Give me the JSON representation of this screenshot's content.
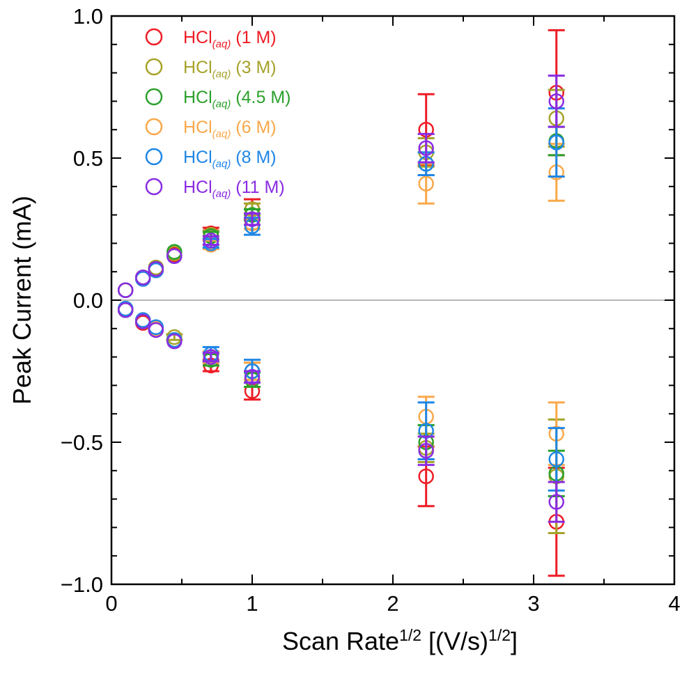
{
  "chart_data": {
    "type": "scatter",
    "title": "",
    "xlabel": "Scan Rate",
    "xlabel_sup": "1/2",
    "xlabel_tail": " [(V/s)",
    "xlabel_tail_sup": "1/2",
    "xlabel_end": "]",
    "ylabel": "Peak Current (mA)",
    "xlim": [
      0,
      4
    ],
    "ylim": [
      -1.0,
      1.0
    ],
    "xticks": [
      0,
      1,
      2,
      3,
      4
    ],
    "xtick_labels": [
      "0",
      "1",
      "2",
      "3",
      "4"
    ],
    "yticks": [
      -1.0,
      -0.5,
      0.0,
      0.5,
      1.0
    ],
    "ytick_labels": [
      "−1.0",
      "−0.5",
      "0.0",
      "0.5",
      "1.0"
    ],
    "grid": false,
    "legend_position": "top-left",
    "zero_line_color": "#a0a0a0",
    "x": [
      0.1,
      0.224,
      0.316,
      0.447,
      0.707,
      1.0,
      2.236,
      3.162
    ],
    "series": [
      {
        "name": "HCl",
        "sub": "(aq)",
        "suffix": " (1 M)",
        "color": "#ee1c25",
        "anodic": [
          0.035,
          0.075,
          0.11,
          0.16,
          0.235,
          0.32,
          0.6,
          0.73
        ],
        "anodic_err": [
          0,
          0,
          0,
          0,
          0.02,
          0.035,
          0.125,
          0.22
        ],
        "cathodic": [
          -0.035,
          -0.08,
          -0.105,
          -0.14,
          -0.23,
          -0.32,
          -0.62,
          -0.78
        ],
        "cathodic_err": [
          0,
          0,
          0,
          0,
          0.02,
          0.03,
          0.105,
          0.19
        ]
      },
      {
        "name": "HCl",
        "sub": "(aq)",
        "suffix": " (3 M)",
        "color": "#a6a22a",
        "anodic": [
          0.035,
          0.08,
          0.115,
          0.165,
          0.23,
          0.32,
          0.52,
          0.64
        ],
        "anodic_err": [
          0,
          0,
          0,
          0,
          0.015,
          0.02,
          0.05,
          0.1
        ],
        "cathodic": [
          -0.03,
          -0.075,
          -0.1,
          -0.13,
          -0.2,
          -0.25,
          -0.52,
          -0.62
        ],
        "cathodic_err": [
          0,
          0,
          0,
          0.01,
          0.02,
          0.03,
          0.05,
          0.2
        ]
      },
      {
        "name": "HCl",
        "sub": "(aq)",
        "suffix": " (4.5 M)",
        "color": "#2ca02c",
        "anodic": [
          0.035,
          0.08,
          0.11,
          0.17,
          0.225,
          0.3,
          0.48,
          0.56
        ],
        "anodic_err": [
          0,
          0,
          0,
          0,
          0.015,
          0.02,
          0.04,
          0.05
        ],
        "cathodic": [
          -0.035,
          -0.075,
          -0.1,
          -0.14,
          -0.21,
          -0.28,
          -0.5,
          -0.61
        ],
        "cathodic_err": [
          0,
          0,
          0,
          0,
          0.02,
          0.025,
          0.06,
          0.08
        ]
      },
      {
        "name": "HCl",
        "sub": "(aq)",
        "suffix": " (6 M)",
        "color": "#f9a84a",
        "anodic": [
          0.035,
          0.075,
          0.105,
          0.155,
          0.195,
          0.27,
          0.41,
          0.45
        ],
        "anodic_err": [
          0,
          0,
          0,
          0,
          0.015,
          0.02,
          0.07,
          0.1
        ],
        "cathodic": [
          -0.03,
          -0.07,
          -0.1,
          -0.14,
          -0.2,
          -0.25,
          -0.41,
          -0.47
        ],
        "cathodic_err": [
          0,
          0,
          0,
          0,
          0.02,
          0.03,
          0.07,
          0.11
        ]
      },
      {
        "name": "HCl",
        "sub": "(aq)",
        "suffix": " (8 M)",
        "color": "#1f86e6",
        "anodic": [
          0.035,
          0.075,
          0.105,
          0.155,
          0.2,
          0.26,
          0.48,
          0.555
        ],
        "anodic_err": [
          0,
          0,
          0,
          0,
          0.015,
          0.03,
          0.04,
          0.12
        ],
        "cathodic": [
          -0.03,
          -0.07,
          -0.095,
          -0.14,
          -0.19,
          -0.25,
          -0.46,
          -0.56
        ],
        "cathodic_err": [
          0,
          0,
          0,
          0,
          0.025,
          0.04,
          0.1,
          0.11
        ]
      },
      {
        "name": "HCl",
        "sub": "(aq)",
        "suffix": " (11 M)",
        "color": "#8a2be2",
        "anodic": [
          0.035,
          0.08,
          0.11,
          0.155,
          0.21,
          0.285,
          0.535,
          0.7
        ],
        "anodic_err": [
          0,
          0,
          0,
          0,
          0.015,
          0.02,
          0.05,
          0.09
        ],
        "cathodic": [
          -0.035,
          -0.075,
          -0.105,
          -0.145,
          -0.2,
          -0.27,
          -0.53,
          -0.71
        ],
        "cathodic_err": [
          0,
          0,
          0,
          0,
          0.015,
          0.02,
          0.05,
          0.07
        ]
      }
    ]
  }
}
